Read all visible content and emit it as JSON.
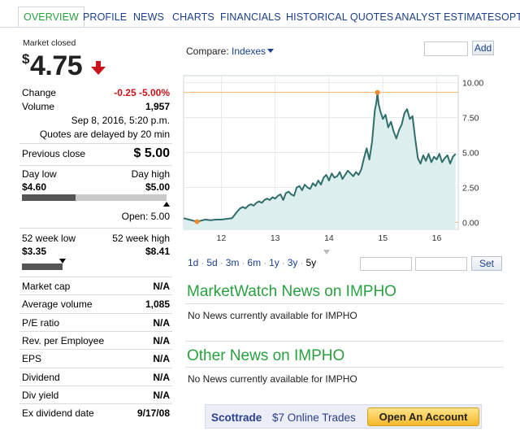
{
  "tabs": [
    "OVERVIEW",
    "PROFILE",
    "NEWS",
    "CHARTS",
    "FINANCIALS",
    "HISTORICAL QUOTES",
    "ANALYST ESTIMATES",
    "OPT"
  ],
  "quote": {
    "status": "Market closed",
    "currency": "$",
    "price": "4.75",
    "direction_icon": "down-arrow-icon",
    "change_label": "Change",
    "change_value": "-0.25 -5.00%",
    "volume_label": "Volume",
    "volume_value": "1,957",
    "timestamp": "Sep 8, 2016, 5:20 p.m.",
    "delay_note": "Quotes are delayed by 20 min",
    "prev_close_label": "Previous close",
    "prev_close_value": "$ 5.00"
  },
  "day_range": {
    "low_label": "Day low",
    "high_label": "Day high",
    "low": "$4.60",
    "high": "$5.00",
    "open_text": "Open: 5.00",
    "position_fraction": 0.37,
    "open_fraction": 1.0
  },
  "week52_range": {
    "low_label": "52 week low",
    "high_label": "52 week high",
    "low": "$3.35",
    "high": "$8.41",
    "position_fraction": 0.28
  },
  "stats": [
    {
      "label": "Market cap",
      "value": "N/A"
    },
    {
      "label": "Average volume",
      "value": "1,085"
    },
    {
      "label": "P/E ratio",
      "value": "N/A"
    },
    {
      "label": "Rev. per Employee",
      "value": "N/A"
    },
    {
      "label": "EPS",
      "value": "N/A"
    },
    {
      "label": "Dividend",
      "value": "N/A"
    },
    {
      "label": "Div yield",
      "value": "N/A"
    },
    {
      "label": "Ex dividend date",
      "value": "9/17/08"
    }
  ],
  "compare": {
    "label": "Compare:",
    "dropdown": "Indexes",
    "add_button": "Add"
  },
  "ranges": [
    "1d",
    "5d",
    "3m",
    "6m",
    "1y",
    "3y",
    "5y"
  ],
  "selected_range": "5y",
  "set_button": "Set",
  "chart_data": {
    "type": "area",
    "x_ticks": [
      "12",
      "13",
      "14",
      "15",
      "16"
    ],
    "y_ticks": [
      "0.00",
      "2.50",
      "5.00",
      "7.50",
      "10.00"
    ],
    "ylim": [
      -0.5,
      10.5
    ],
    "xlim": [
      11.3,
      16.4
    ],
    "reference_lines": [
      9.3,
      0.0
    ],
    "markers": [
      {
        "x": 11.55,
        "y": 0.05
      },
      {
        "x": 14.9,
        "y": 9.3
      }
    ],
    "x": [
      11.3,
      11.4,
      11.5,
      11.55,
      11.6,
      11.7,
      11.8,
      11.9,
      12.0,
      12.1,
      12.2,
      12.3,
      12.35,
      12.4,
      12.45,
      12.5,
      12.55,
      12.6,
      12.65,
      12.7,
      12.75,
      12.8,
      12.85,
      12.9,
      12.95,
      13.0,
      13.05,
      13.1,
      13.15,
      13.2,
      13.25,
      13.3,
      13.35,
      13.4,
      13.45,
      13.5,
      13.55,
      13.6,
      13.65,
      13.7,
      13.75,
      13.8,
      13.85,
      13.9,
      13.95,
      14.0,
      14.05,
      14.1,
      14.15,
      14.2,
      14.25,
      14.3,
      14.35,
      14.4,
      14.45,
      14.5,
      14.55,
      14.6,
      14.65,
      14.7,
      14.75,
      14.8,
      14.85,
      14.88,
      14.9,
      14.92,
      14.95,
      15.0,
      15.05,
      15.1,
      15.15,
      15.2,
      15.25,
      15.3,
      15.35,
      15.4,
      15.45,
      15.5,
      15.55,
      15.6,
      15.65,
      15.7,
      15.75,
      15.8,
      15.85,
      15.9,
      15.95,
      16.0,
      16.05,
      16.1,
      16.15,
      16.2,
      16.25,
      16.3,
      16.35
    ],
    "values": [
      0.3,
      0.2,
      0.1,
      0.05,
      0.1,
      0.2,
      0.15,
      0.2,
      0.2,
      0.25,
      0.3,
      0.8,
      1.0,
      1.1,
      1.0,
      1.2,
      1.3,
      1.2,
      1.4,
      1.5,
      1.4,
      1.6,
      1.7,
      1.6,
      1.8,
      1.7,
      1.9,
      2.0,
      1.6,
      2.1,
      2.2,
      2.0,
      1.9,
      2.5,
      2.6,
      2.3,
      2.7,
      2.5,
      2.4,
      2.8,
      2.6,
      3.0,
      2.7,
      3.2,
      3.4,
      3.0,
      3.5,
      3.2,
      3.3,
      3.6,
      3.1,
      3.4,
      3.7,
      3.5,
      3.3,
      3.6,
      3.4,
      3.8,
      4.6,
      5.3,
      4.5,
      5.8,
      8.0,
      8.6,
      9.3,
      8.5,
      8.0,
      7.4,
      7.7,
      6.8,
      7.2,
      6.5,
      6.0,
      6.6,
      7.0,
      7.8,
      8.1,
      7.4,
      7.6,
      6.0,
      4.6,
      4.2,
      4.8,
      4.4,
      4.9,
      4.3,
      4.7,
      4.5,
      4.9,
      4.3,
      4.6,
      4.8,
      4.2,
      4.7,
      4.9
    ]
  },
  "news": {
    "mw_title": "MarketWatch News on IMPHO",
    "mw_text": "No News currently available for IMPHO",
    "other_title": "Other News on IMPHO",
    "other_text": "No News currently available for IMPHO"
  },
  "ad": {
    "brand": "Scottrade",
    "promo": "$7 Online Trades",
    "cta": "Open An Account"
  },
  "colors": {
    "accent_green": "#2aa040",
    "link_blue": "#1a3f8c",
    "down_red": "#c8141a",
    "chart_fill": "#dcefee",
    "chart_line": "#2f6e6a",
    "ref_line": "#f2b46d"
  }
}
